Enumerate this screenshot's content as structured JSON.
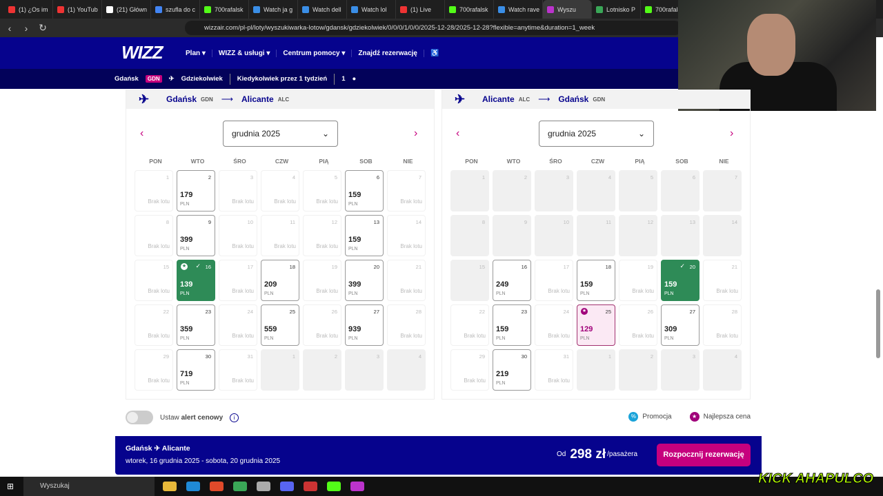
{
  "browser": {
    "tabs": [
      "(1) ¿Os im",
      "(1) YouTub",
      "(21) Główn",
      "szufla do c",
      "700rafalsk",
      "Watch ja g",
      "Watch dell",
      "Watch lol",
      "(1) Live",
      "700rafalsk",
      "Watch rave",
      "Wyszu",
      "Lotnisko P",
      "700rafalsk"
    ],
    "active_tab": 11,
    "url": "wizzair.com/pl-pl/loty/wyszukiwarka-lotow/gdansk/gdziekolwiek/0/0/0/1/0/0/2025-12-28/2025-12-28?flexible=anytime&duration=1_week"
  },
  "header": {
    "logo": "WIZZ",
    "menu": [
      "Plan ▾",
      "WIZZ & usługi ▾",
      "Centrum pomocy ▾",
      "Znajdź rezerwację",
      "♿"
    ]
  },
  "search": {
    "origin": "Gdańsk",
    "origin_code": "GDN",
    "destination": "Gdziekolwiek",
    "when": "Kiedykolwiek przez 1 tydzień",
    "passengers": "1"
  },
  "weekdays": [
    "PON",
    "WTO",
    "ŚRO",
    "CZW",
    "PIĄ",
    "SOB",
    "NIE"
  ],
  "no_flight": "Brak lotu",
  "currency": "PLN",
  "calendars": [
    {
      "from": "Gdańsk",
      "from_code": "GDN",
      "to": "Alicante",
      "to_code": "ALC",
      "month": "grudnia 2025",
      "cells": [
        [
          1,
          null,
          ""
        ],
        [
          2,
          179,
          ""
        ],
        [
          3,
          null,
          ""
        ],
        [
          4,
          null,
          ""
        ],
        [
          5,
          null,
          ""
        ],
        [
          6,
          159,
          ""
        ],
        [
          7,
          null,
          ""
        ],
        [
          8,
          null,
          ""
        ],
        [
          9,
          399,
          ""
        ],
        [
          10,
          null,
          ""
        ],
        [
          11,
          null,
          ""
        ],
        [
          12,
          null,
          ""
        ],
        [
          13,
          159,
          ""
        ],
        [
          14,
          null,
          ""
        ],
        [
          15,
          null,
          ""
        ],
        [
          16,
          139,
          "selected-best"
        ],
        [
          17,
          null,
          ""
        ],
        [
          18,
          209,
          ""
        ],
        [
          19,
          null,
          ""
        ],
        [
          20,
          399,
          ""
        ],
        [
          21,
          null,
          ""
        ],
        [
          22,
          null,
          ""
        ],
        [
          23,
          359,
          ""
        ],
        [
          24,
          null,
          ""
        ],
        [
          25,
          559,
          ""
        ],
        [
          26,
          null,
          ""
        ],
        [
          27,
          939,
          ""
        ],
        [
          28,
          null,
          ""
        ],
        [
          29,
          null,
          ""
        ],
        [
          30,
          719,
          ""
        ],
        [
          31,
          null,
          ""
        ],
        [
          1,
          null,
          "disabled"
        ],
        [
          2,
          null,
          "disabled"
        ],
        [
          3,
          null,
          "disabled"
        ],
        [
          4,
          null,
          "disabled"
        ]
      ]
    },
    {
      "from": "Alicante",
      "from_code": "ALC",
      "to": "Gdańsk",
      "to_code": "GDN",
      "month": "grudnia 2025",
      "cells": [
        [
          1,
          null,
          "disabled"
        ],
        [
          2,
          null,
          "disabled"
        ],
        [
          3,
          null,
          "disabled"
        ],
        [
          4,
          null,
          "disabled"
        ],
        [
          5,
          null,
          "disabled"
        ],
        [
          6,
          null,
          "disabled"
        ],
        [
          7,
          null,
          "disabled"
        ],
        [
          8,
          null,
          "disabled"
        ],
        [
          9,
          null,
          "disabled"
        ],
        [
          10,
          null,
          "disabled"
        ],
        [
          11,
          null,
          "disabled"
        ],
        [
          12,
          null,
          "disabled"
        ],
        [
          13,
          null,
          "disabled"
        ],
        [
          14,
          null,
          "disabled"
        ],
        [
          15,
          null,
          "disabled"
        ],
        [
          16,
          249,
          ""
        ],
        [
          17,
          null,
          ""
        ],
        [
          18,
          159,
          ""
        ],
        [
          19,
          null,
          ""
        ],
        [
          20,
          159,
          "selected"
        ],
        [
          21,
          null,
          ""
        ],
        [
          22,
          null,
          ""
        ],
        [
          23,
          159,
          ""
        ],
        [
          24,
          null,
          ""
        ],
        [
          25,
          129,
          "best"
        ],
        [
          26,
          null,
          ""
        ],
        [
          27,
          309,
          ""
        ],
        [
          28,
          null,
          ""
        ],
        [
          29,
          null,
          ""
        ],
        [
          30,
          219,
          ""
        ],
        [
          31,
          null,
          ""
        ],
        [
          1,
          null,
          "disabled"
        ],
        [
          2,
          null,
          "disabled"
        ],
        [
          3,
          null,
          "disabled"
        ],
        [
          4,
          null,
          "disabled"
        ]
      ]
    }
  ],
  "alert": {
    "prefix": "Ustaw ",
    "bold": "alert cenowy"
  },
  "legend": {
    "promo": "Promocja",
    "best": "Najlepsza cena"
  },
  "summary": {
    "from": "Gdańsk",
    "to": "Alicante",
    "dates": "wtorek, 16 grudnia 2025 - sobota, 20 grudnia 2025",
    "from_label": "Od",
    "price": "298 zł",
    "per": "/pasażera",
    "book": "Rozpocznij rezerwację"
  },
  "taskbar": {
    "search": "Wyszukaj"
  },
  "overlay": {
    "stream_logo": "AHAPULCO",
    "kick": "KICK"
  },
  "colors": {
    "navy": "#06038d",
    "magenta": "#c6007e",
    "green": "#2e8b57",
    "promo": "#1aa3d9"
  }
}
